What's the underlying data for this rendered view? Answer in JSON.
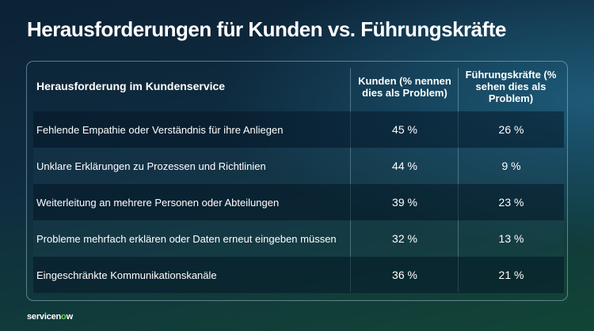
{
  "title": "Herausforderungen für Kunden vs. Führungskräfte",
  "chart_data": {
    "type": "table",
    "columns": [
      "Herausforderung im Kundenservice",
      "Kunden (% nennen dies als Problem)",
      "Führungskräfte (% sehen dies als Problem)"
    ],
    "rows": [
      [
        "Fehlende Empathie oder Verständnis für ihre Anliegen",
        "45 %",
        "26 %"
      ],
      [
        "Unklare Erklärungen zu Prozessen und Richtlinien",
        "44 %",
        "9 %"
      ],
      [
        "Weiterleitung an mehrere Personen oder Abteilungen",
        "39 %",
        "23 %"
      ],
      [
        "Probleme mehrfach erklären oder Daten erneut eingeben müssen",
        "32 %",
        "13 %"
      ],
      [
        "Eingeschränkte Kommunikationskanäle",
        "36 %",
        "21 %"
      ]
    ]
  },
  "logo": {
    "text_before": "servicen",
    "text_o": "o",
    "text_after": "w"
  }
}
